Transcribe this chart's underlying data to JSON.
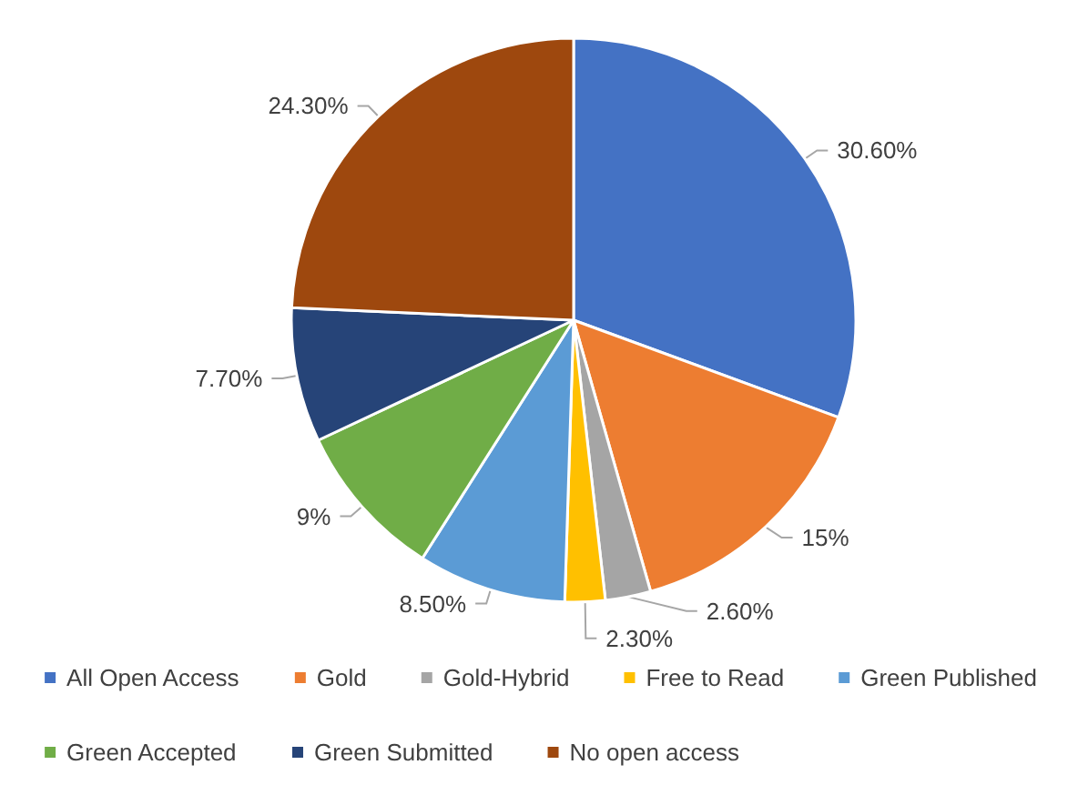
{
  "chart_data": {
    "type": "pie",
    "categories": [
      "All Open Access",
      "Gold",
      "Gold-Hybrid",
      "Free to Read",
      "Green Published",
      "Green Accepted",
      "Green Submitted",
      "No open access"
    ],
    "values": [
      30.6,
      15,
      2.6,
      2.3,
      8.5,
      9,
      7.7,
      24.3
    ],
    "value_labels": [
      "30.60%",
      "15%",
      "2.60%",
      "2.30%",
      "8.50%",
      "9%",
      "7.70%",
      "24.30%"
    ],
    "colors": [
      "#4472c4",
      "#ed7d31",
      "#a5a5a5",
      "#ffc000",
      "#5b9bd5",
      "#70ad47",
      "#264478",
      "#9e480e"
    ],
    "legend": "bottom"
  }
}
